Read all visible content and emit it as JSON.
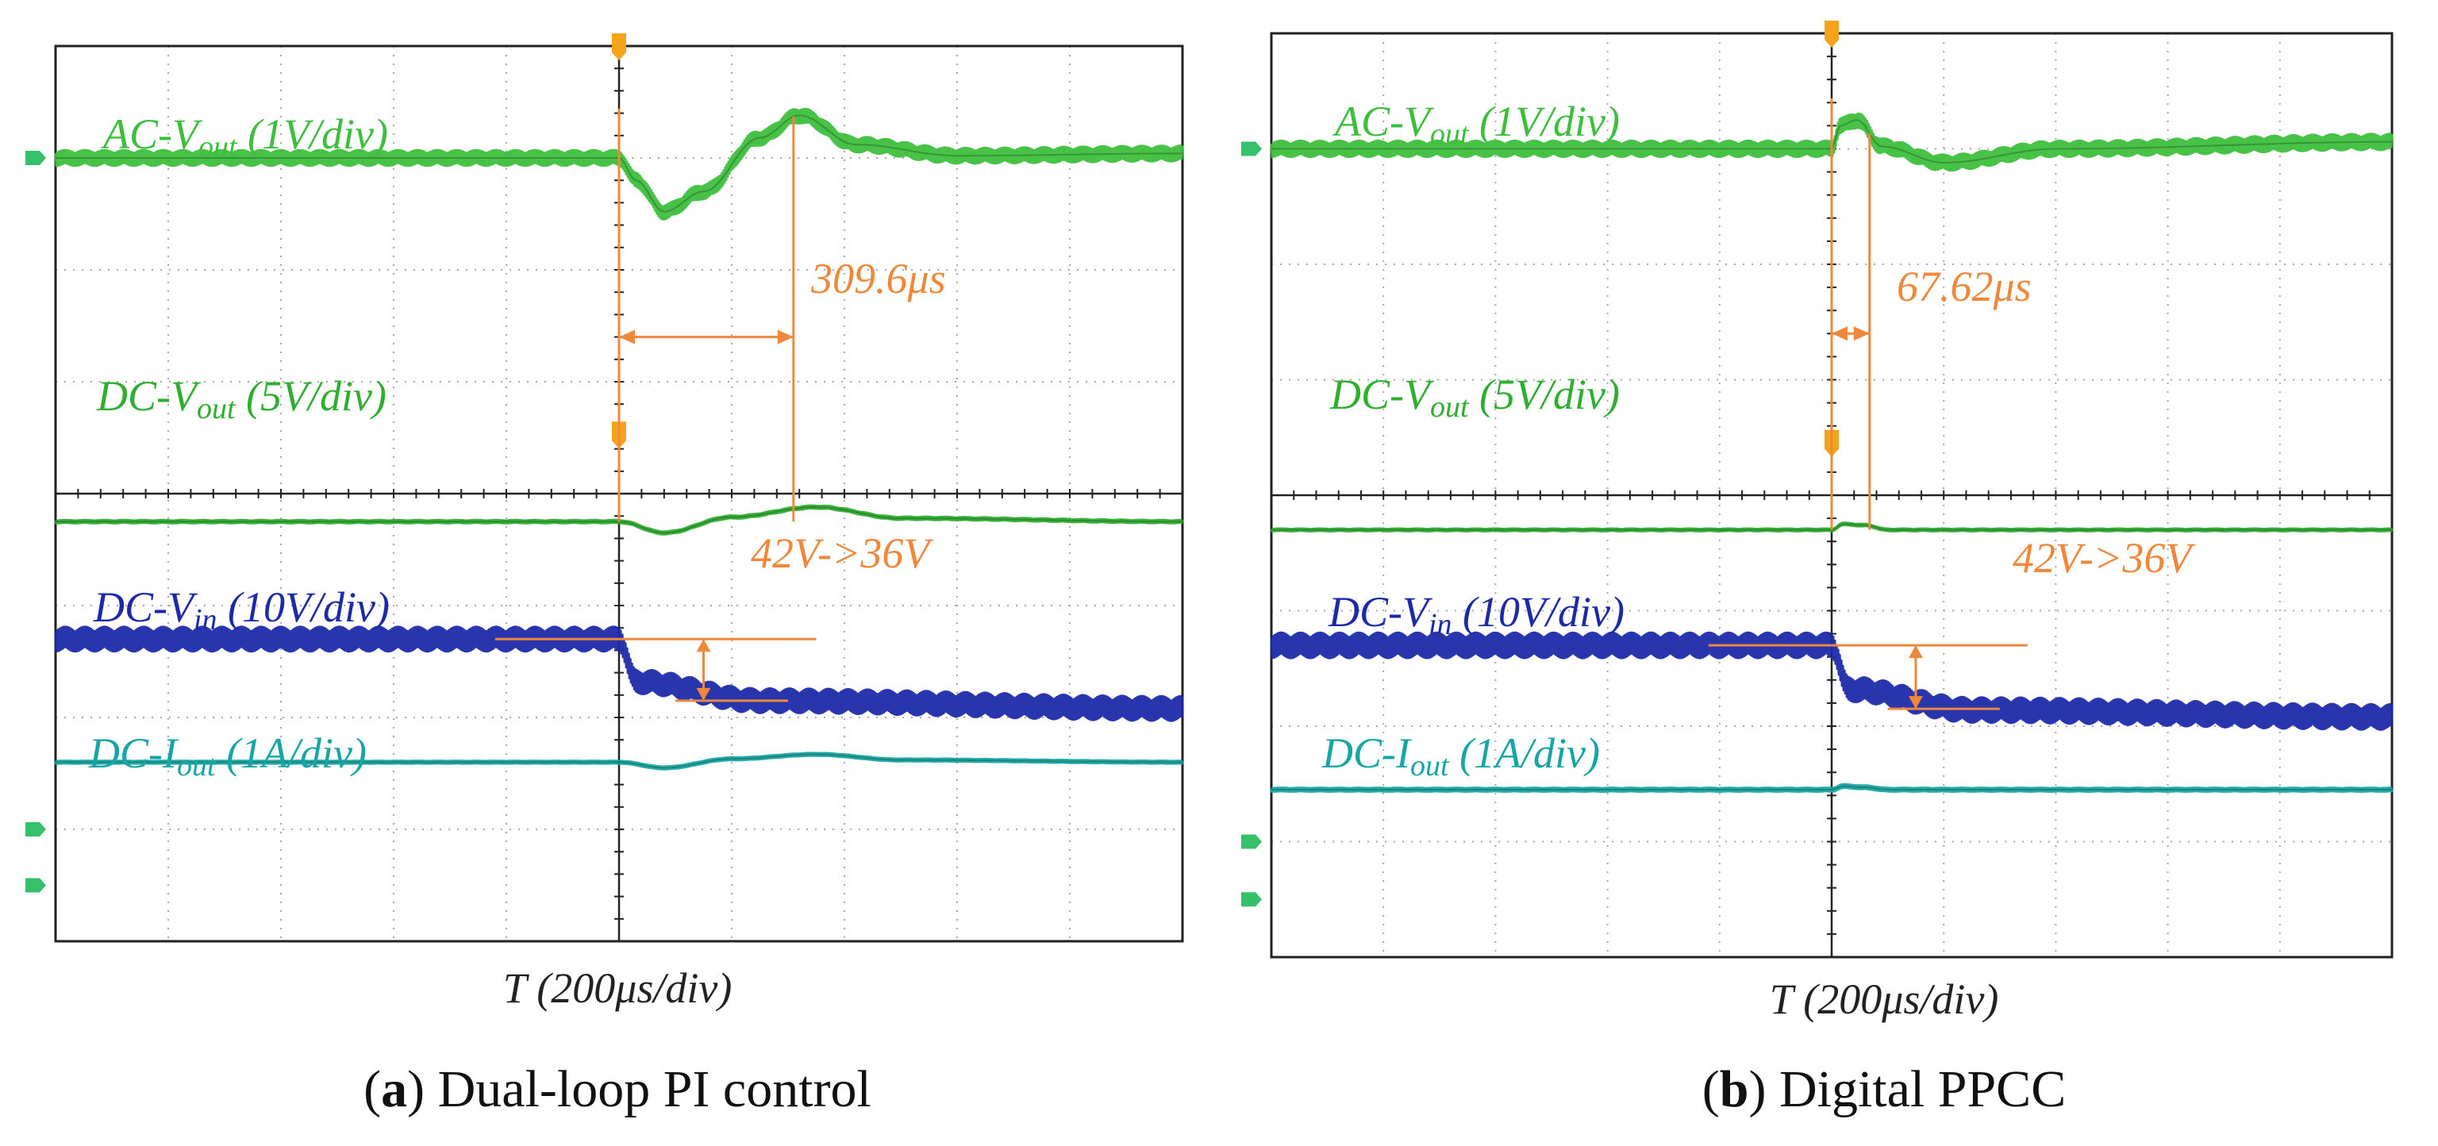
{
  "colors": {
    "ac_vout": "#3dbf3d",
    "dc_vout": "#2fae2f",
    "dc_vin": "#1c2aa8",
    "dc_iout": "#17a5a5",
    "annotation": "#f0883c",
    "grid": "#a8a8a8",
    "frame": "#222222",
    "marker": "#35c06a"
  },
  "chart_data": [
    {
      "type": "line",
      "id": "a",
      "caption_letter": "a",
      "caption_text": "Dual-loop PI control",
      "xlabel": "T (200μs/div)",
      "x_unit": "μs",
      "xlim": [
        -1000,
        1000
      ],
      "grid": {
        "x_divisions": 10,
        "y_divisions": 8
      },
      "channel_labels": [
        {
          "key": "ac_vout",
          "pre": "AC-V",
          "sub": "out",
          "post": " (1V/div)"
        },
        {
          "key": "dc_vout",
          "pre": "DC-V",
          "sub": "out",
          "post": " (5V/div)"
        },
        {
          "key": "dc_vin",
          "pre": "DC-V",
          "sub": "in",
          "post": " (10V/div)"
        },
        {
          "key": "dc_iout",
          "pre": "DC-I",
          "sub": "out",
          "post": " (1A/div)"
        }
      ],
      "series": [
        {
          "key": "ac_vout",
          "name": "AC-Vout",
          "baseline_div": 3.0,
          "ripple_div": 0.07,
          "points": [
            [
              -1000,
              0
            ],
            [
              0,
              0
            ],
            [
              30,
              -0.2
            ],
            [
              80,
              -0.48
            ],
            [
              150,
              -0.3
            ],
            [
              250,
              0.18
            ],
            [
              320,
              0.38
            ],
            [
              420,
              0.12
            ],
            [
              600,
              0.02
            ],
            [
              1000,
              0.04
            ]
          ]
        },
        {
          "key": "dc_vout",
          "name": "DC-Vout",
          "baseline_div": -0.25,
          "ripple_div": 0.015,
          "points": [
            [
              -1000,
              0
            ],
            [
              0,
              0
            ],
            [
              80,
              -0.1
            ],
            [
              200,
              0.04
            ],
            [
              350,
              0.13
            ],
            [
              500,
              0.03
            ],
            [
              1000,
              0
            ]
          ]
        },
        {
          "key": "dc_vin",
          "name": "DC-Vin",
          "baseline_div": -1.3,
          "ripple_div": 0.11,
          "points": [
            [
              -1000,
              0
            ],
            [
              0,
              0
            ],
            [
              30,
              -0.38
            ],
            [
              250,
              -0.55
            ],
            [
              1000,
              -0.62
            ]
          ]
        },
        {
          "key": "dc_iout",
          "name": "DC-Iout",
          "baseline_div": -2.4,
          "ripple_div": 0.006,
          "points": [
            [
              -1000,
              0
            ],
            [
              0,
              0
            ],
            [
              80,
              -0.05
            ],
            [
              200,
              0.03
            ],
            [
              350,
              0.07
            ],
            [
              500,
              0.02
            ],
            [
              1000,
              0
            ]
          ]
        }
      ],
      "measurements": [
        {
          "kind": "time",
          "label": "309.6μs",
          "t_start": 0,
          "t_end": 309.6
        },
        {
          "kind": "step",
          "label": "42V->36V",
          "from_v": 42,
          "to_v": 36,
          "t": 0
        }
      ]
    },
    {
      "type": "line",
      "id": "b",
      "caption_letter": "b",
      "caption_text": "Digital PPCC",
      "xlabel": "T (200μs/div)",
      "x_unit": "μs",
      "xlim": [
        -1000,
        1000
      ],
      "grid": {
        "x_divisions": 10,
        "y_divisions": 8
      },
      "channel_labels": [
        {
          "key": "ac_vout",
          "pre": "AC-V",
          "sub": "out",
          "post": " (1V/div)"
        },
        {
          "key": "dc_vout",
          "pre": "DC-V",
          "sub": "out",
          "post": " (5V/div)"
        },
        {
          "key": "dc_vin",
          "pre": "DC-V",
          "sub": "in",
          "post": " (10V/div)"
        },
        {
          "key": "dc_iout",
          "pre": "DC-I",
          "sub": "out",
          "post": " (1A/div)"
        }
      ],
      "series": [
        {
          "key": "ac_vout",
          "name": "AC-Vout",
          "baseline_div": 3.0,
          "ripple_div": 0.07,
          "points": [
            [
              -1000,
              0
            ],
            [
              0,
              0
            ],
            [
              15,
              0.2
            ],
            [
              45,
              0.25
            ],
            [
              90,
              0.02
            ],
            [
              200,
              -0.12
            ],
            [
              400,
              0
            ],
            [
              1000,
              0.06
            ]
          ]
        },
        {
          "key": "dc_vout",
          "name": "DC-Vout",
          "baseline_div": -0.3,
          "ripple_div": 0.012,
          "points": [
            [
              -1000,
              0
            ],
            [
              0,
              0
            ],
            [
              20,
              0.05
            ],
            [
              60,
              0.04
            ],
            [
              100,
              0
            ],
            [
              1000,
              0
            ]
          ]
        },
        {
          "key": "dc_vin",
          "name": "DC-Vin",
          "baseline_div": -1.3,
          "ripple_div": 0.11,
          "points": [
            [
              -1000,
              0
            ],
            [
              0,
              0
            ],
            [
              30,
              -0.38
            ],
            [
              250,
              -0.56
            ],
            [
              1000,
              -0.62
            ]
          ]
        },
        {
          "key": "dc_iout",
          "name": "DC-Iout",
          "baseline_div": -2.55,
          "ripple_div": 0.01,
          "points": [
            [
              -1000,
              0
            ],
            [
              0,
              0
            ],
            [
              20,
              0.03
            ],
            [
              60,
              0.02
            ],
            [
              100,
              0
            ],
            [
              1000,
              0
            ]
          ]
        }
      ],
      "measurements": [
        {
          "kind": "time",
          "label": "67.62μs",
          "t_start": 0,
          "t_end": 67.62
        },
        {
          "kind": "step",
          "label": "42V->36V",
          "from_v": 42,
          "to_v": 36,
          "t": 0
        }
      ]
    }
  ]
}
